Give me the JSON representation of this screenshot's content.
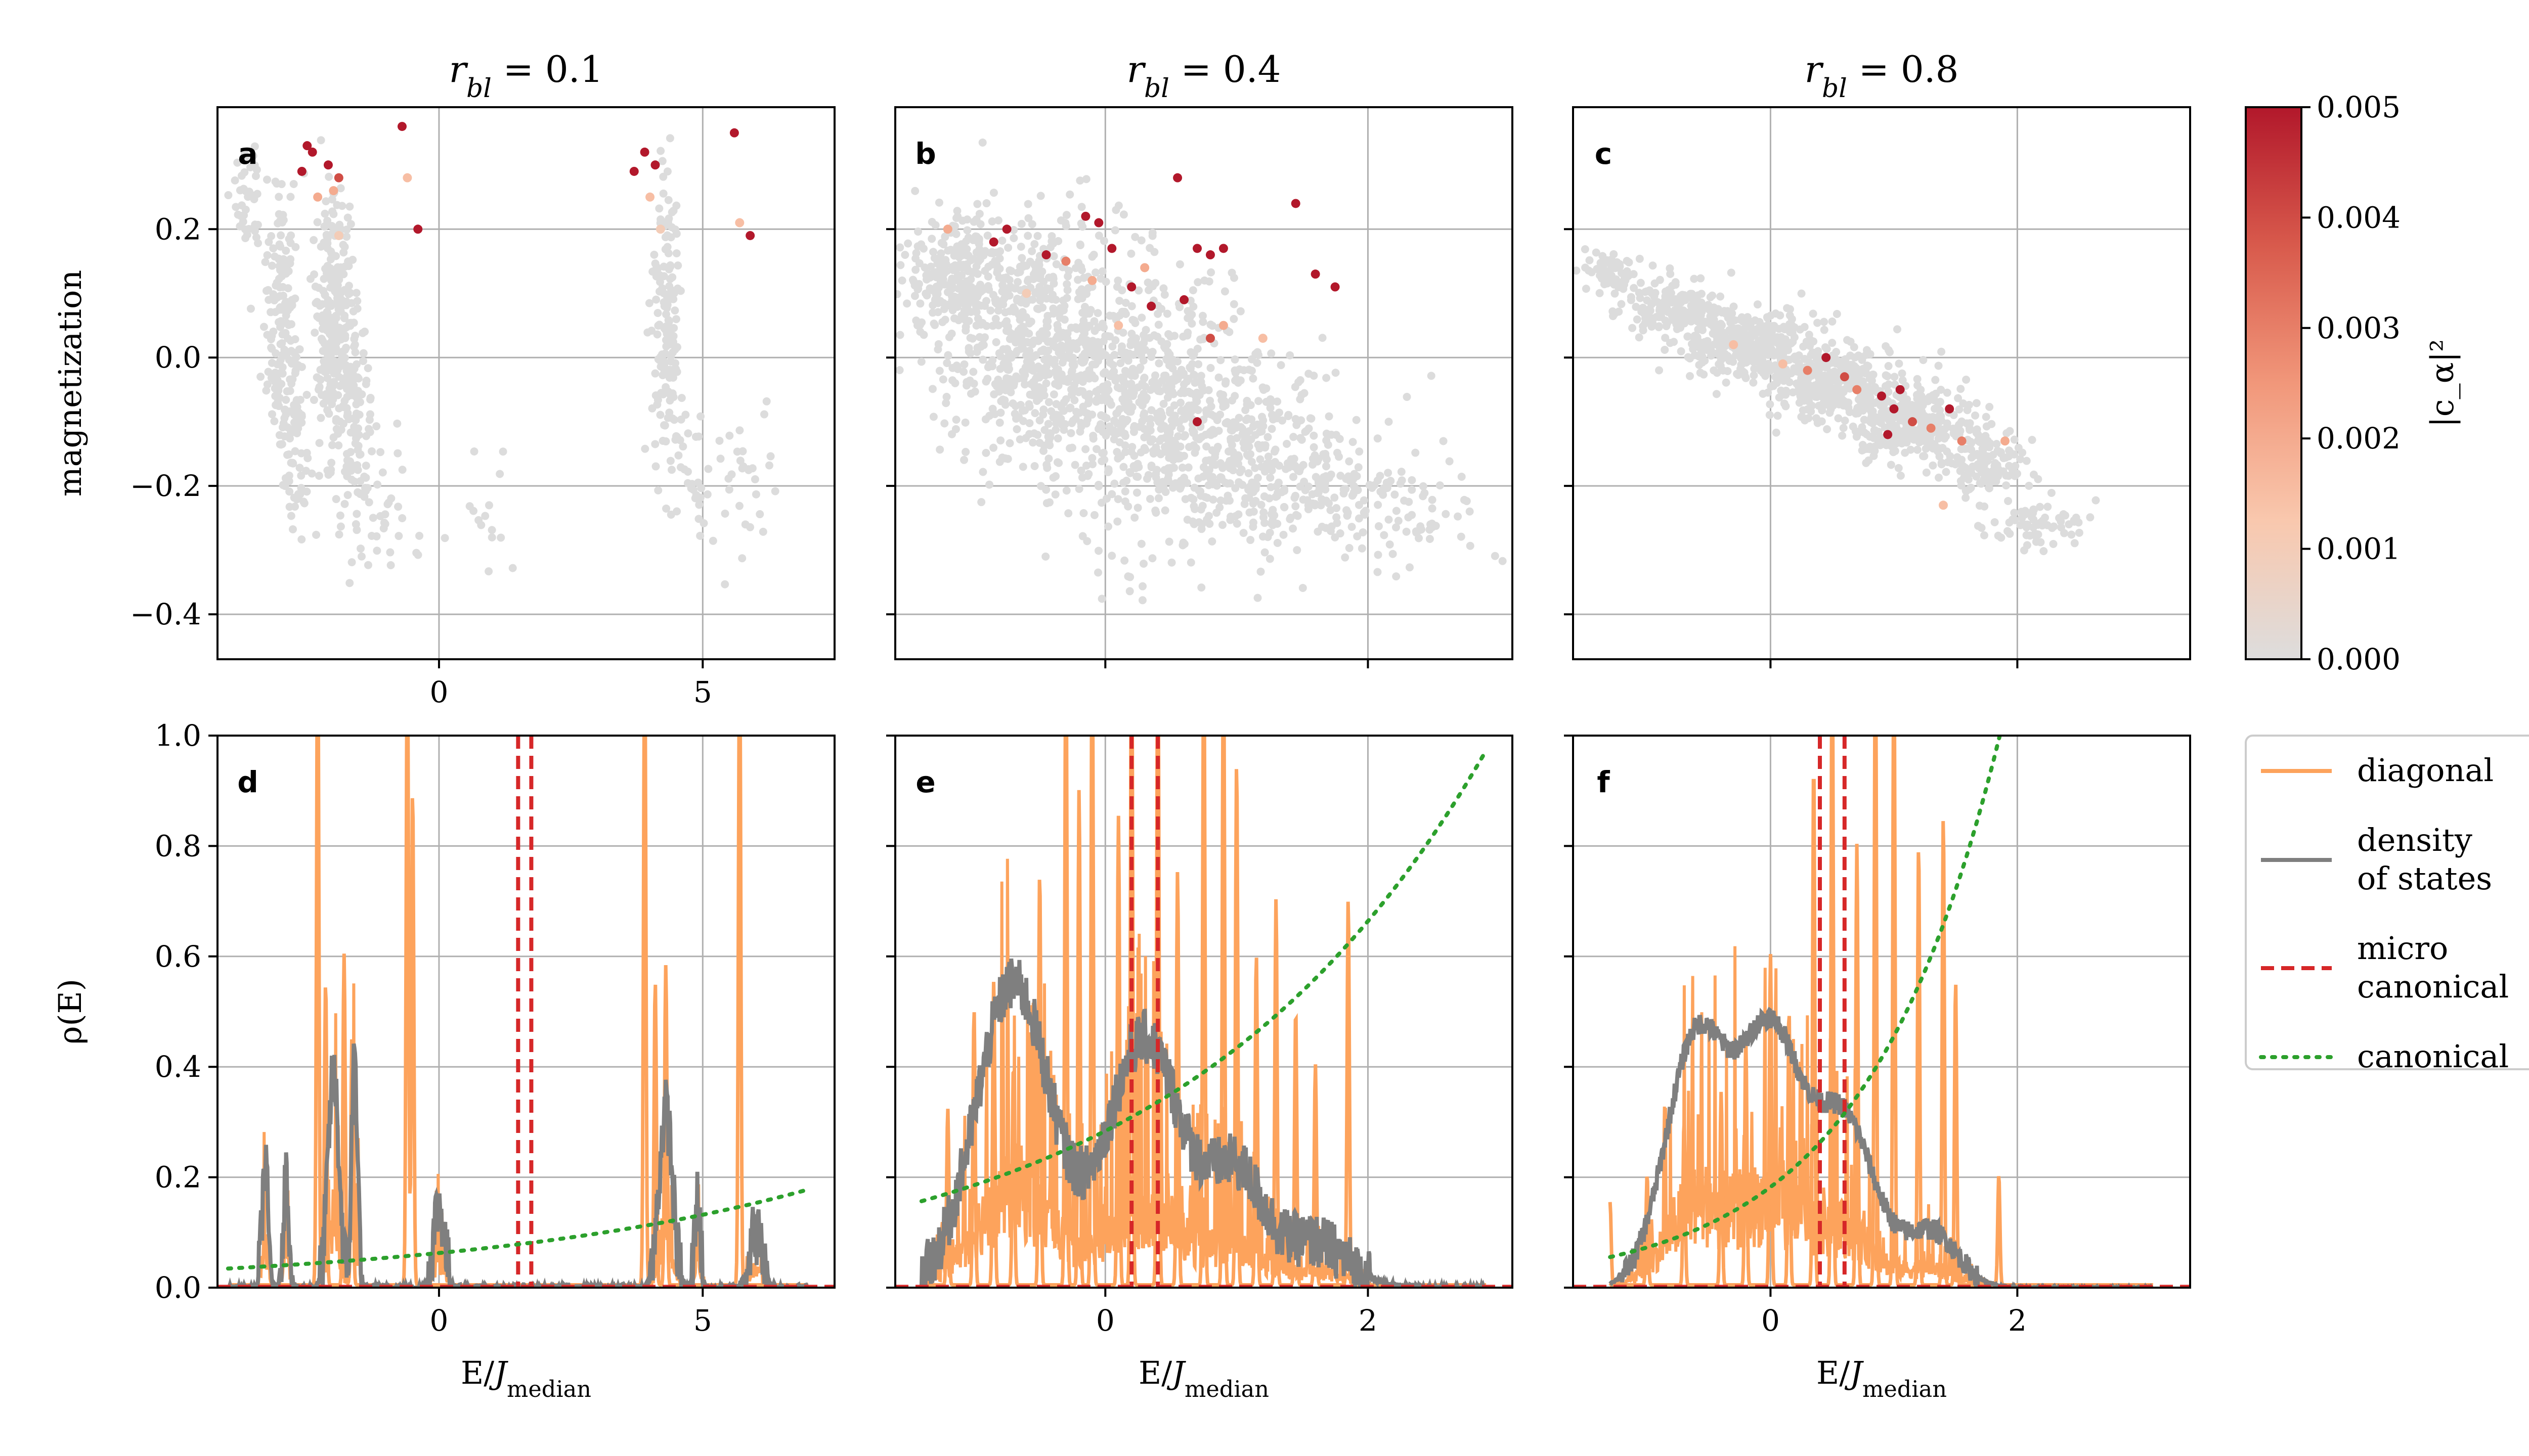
{
  "figure": {
    "colorbar": {
      "label": "|c_α|²",
      "ticks": [
        "0.000",
        "0.001",
        "0.002",
        "0.003",
        "0.004",
        "0.005"
      ],
      "range": [
        0,
        0.005
      ],
      "colors": [
        "#dddddd",
        "#f9c8ae",
        "#f1977a",
        "#d85a4c",
        "#b2182b"
      ]
    },
    "legend": {
      "entries": [
        {
          "key": "diagonal",
          "lines": [
            "diagonal"
          ],
          "color": "#fda35c",
          "style": "solid"
        },
        {
          "key": "dos",
          "lines": [
            "density",
            "of states"
          ],
          "color": "#7f7f7f",
          "style": "solid"
        },
        {
          "key": "micro",
          "lines": [
            "micro",
            "canonical"
          ],
          "color": "#d62728",
          "style": "dashed"
        },
        {
          "key": "canonical",
          "lines": [
            "canonical"
          ],
          "color": "#2ca02c",
          "style": "dotted"
        }
      ]
    }
  },
  "chart_data": [
    {
      "type": "scatter",
      "panel": "a",
      "column": 0,
      "row": 0,
      "title": "r_bl = 0.1",
      "ylabel": "magnetization",
      "xlabel": "",
      "xlim": [
        -4.2,
        7.5
      ],
      "ylim": [
        -0.47,
        0.39
      ],
      "xticks": [
        0,
        5
      ],
      "xtick_labels": [
        "0",
        "5"
      ],
      "yticks": [
        -0.4,
        -0.2,
        0.0,
        0.2
      ],
      "ytick_labels": [
        "−0.4",
        "−0.2",
        "0.0",
        "0.2"
      ],
      "grid": true,
      "clusters": [
        {
          "x": -3.6,
          "y": 0.24,
          "xs": 0.15,
          "ys": 0.05,
          "n": 40
        },
        {
          "x": -3.0,
          "y": 0.06,
          "xs": 0.15,
          "ys": 0.1,
          "n": 160
        },
        {
          "x": -2.7,
          "y": -0.12,
          "xs": 0.15,
          "ys": 0.08,
          "n": 70
        },
        {
          "x": -2.0,
          "y": 0.05,
          "xs": 0.18,
          "ys": 0.1,
          "n": 260
        },
        {
          "x": -1.6,
          "y": -0.12,
          "xs": 0.18,
          "ys": 0.08,
          "n": 120
        },
        {
          "x": -0.9,
          "y": -0.25,
          "xs": 0.25,
          "ys": 0.05,
          "n": 25
        },
        {
          "x": 0.7,
          "y": -0.28,
          "xs": 0.3,
          "ys": 0.05,
          "n": 15
        },
        {
          "x": 4.3,
          "y": 0.05,
          "xs": 0.15,
          "ys": 0.12,
          "n": 150
        },
        {
          "x": 4.8,
          "y": -0.2,
          "xs": 0.2,
          "ys": 0.06,
          "n": 30
        },
        {
          "x": 5.8,
          "y": -0.2,
          "xs": 0.3,
          "ys": 0.06,
          "n": 30
        }
      ],
      "highlights": [
        {
          "x": -2.5,
          "y": 0.33,
          "c": 0.005
        },
        {
          "x": -2.4,
          "y": 0.32,
          "c": 0.005
        },
        {
          "x": -2.6,
          "y": 0.29,
          "c": 0.005
        },
        {
          "x": -2.1,
          "y": 0.3,
          "c": 0.005
        },
        {
          "x": -1.9,
          "y": 0.28,
          "c": 0.004
        },
        {
          "x": -0.7,
          "y": 0.36,
          "c": 0.005
        },
        {
          "x": -0.4,
          "y": 0.2,
          "c": 0.005
        },
        {
          "x": 3.7,
          "y": 0.29,
          "c": 0.005
        },
        {
          "x": 3.9,
          "y": 0.32,
          "c": 0.005
        },
        {
          "x": 4.1,
          "y": 0.3,
          "c": 0.005
        },
        {
          "x": 5.6,
          "y": 0.35,
          "c": 0.005
        },
        {
          "x": 5.9,
          "y": 0.19,
          "c": 0.005
        },
        {
          "x": -2.3,
          "y": 0.25,
          "c": 0.002
        },
        {
          "x": -2.0,
          "y": 0.26,
          "c": 0.002
        },
        {
          "x": -1.9,
          "y": 0.19,
          "c": 0.001
        },
        {
          "x": -0.6,
          "y": 0.28,
          "c": 0.0015
        },
        {
          "x": 4.0,
          "y": 0.25,
          "c": 0.0015
        },
        {
          "x": 4.2,
          "y": 0.2,
          "c": 0.001
        },
        {
          "x": 5.7,
          "y": 0.21,
          "c": 0.0015
        }
      ]
    },
    {
      "type": "scatter",
      "panel": "b",
      "column": 1,
      "row": 0,
      "title": "r_bl = 0.4",
      "ylabel": "",
      "xlabel": "",
      "xlim": [
        -1.6,
        3.1
      ],
      "ylim": [
        -0.47,
        0.39
      ],
      "xticks": [
        0,
        2
      ],
      "xtick_labels": [],
      "yticks": [
        -0.4,
        -0.2,
        0.0,
        0.2
      ],
      "ytick_labels": [],
      "grid": true,
      "clusters": [
        {
          "x": -1.1,
          "y": 0.12,
          "xs": 0.2,
          "ys": 0.05,
          "n": 260
        },
        {
          "x": -0.5,
          "y": 0.02,
          "xs": 0.35,
          "ys": 0.1,
          "n": 650
        },
        {
          "x": 0.4,
          "y": -0.08,
          "xs": 0.4,
          "ys": 0.1,
          "n": 650
        },
        {
          "x": 1.2,
          "y": -0.16,
          "xs": 0.35,
          "ys": 0.07,
          "n": 260
        },
        {
          "x": 1.9,
          "y": -0.22,
          "xs": 0.35,
          "ys": 0.05,
          "n": 120
        },
        {
          "x": 2.5,
          "y": -0.27,
          "xs": 0.25,
          "ys": 0.03,
          "n": 25
        }
      ],
      "highlights": [
        {
          "x": -0.85,
          "y": 0.18,
          "c": 0.005
        },
        {
          "x": -0.75,
          "y": 0.2,
          "c": 0.005
        },
        {
          "x": -0.45,
          "y": 0.16,
          "c": 0.005
        },
        {
          "x": -0.15,
          "y": 0.22,
          "c": 0.005
        },
        {
          "x": -0.05,
          "y": 0.21,
          "c": 0.005
        },
        {
          "x": 0.05,
          "y": 0.17,
          "c": 0.005
        },
        {
          "x": 0.2,
          "y": 0.11,
          "c": 0.005
        },
        {
          "x": 0.35,
          "y": 0.08,
          "c": 0.005
        },
        {
          "x": 0.55,
          "y": 0.28,
          "c": 0.005
        },
        {
          "x": 0.7,
          "y": 0.17,
          "c": 0.005
        },
        {
          "x": 0.8,
          "y": 0.16,
          "c": 0.005
        },
        {
          "x": 0.9,
          "y": 0.17,
          "c": 0.005
        },
        {
          "x": 1.45,
          "y": 0.24,
          "c": 0.005
        },
        {
          "x": 1.6,
          "y": 0.13,
          "c": 0.005
        },
        {
          "x": 1.75,
          "y": 0.11,
          "c": 0.005
        },
        {
          "x": 0.6,
          "y": 0.09,
          "c": 0.005
        },
        {
          "x": 0.7,
          "y": -0.1,
          "c": 0.005
        },
        {
          "x": 0.8,
          "y": 0.03,
          "c": 0.004
        },
        {
          "x": -1.2,
          "y": 0.2,
          "c": 0.002
        },
        {
          "x": -0.3,
          "y": 0.15,
          "c": 0.003
        },
        {
          "x": -0.1,
          "y": 0.12,
          "c": 0.002
        },
        {
          "x": 0.3,
          "y": 0.14,
          "c": 0.002
        },
        {
          "x": 0.9,
          "y": 0.05,
          "c": 0.002
        },
        {
          "x": 1.2,
          "y": 0.03,
          "c": 0.0015
        },
        {
          "x": 0.1,
          "y": 0.05,
          "c": 0.0015
        },
        {
          "x": -0.6,
          "y": 0.1,
          "c": 0.001
        }
      ]
    },
    {
      "type": "scatter",
      "panel": "c",
      "column": 2,
      "row": 0,
      "title": "r_bl = 0.8",
      "ylabel": "",
      "xlabel": "",
      "xlim": [
        -1.6,
        3.4
      ],
      "ylim": [
        -0.47,
        0.39
      ],
      "xticks": [
        0,
        2
      ],
      "xtick_labels": [],
      "yticks": [
        -0.4,
        -0.2,
        0.0,
        0.2
      ],
      "ytick_labels": [],
      "grid": true,
      "clusters": [
        {
          "x": -1.3,
          "y": 0.13,
          "xs": 0.1,
          "ys": 0.015,
          "n": 60
        },
        {
          "x": -0.8,
          "y": 0.08,
          "xs": 0.2,
          "ys": 0.02,
          "n": 180
        },
        {
          "x": -0.2,
          "y": 0.02,
          "xs": 0.25,
          "ys": 0.025,
          "n": 320
        },
        {
          "x": 0.5,
          "y": -0.04,
          "xs": 0.25,
          "ys": 0.03,
          "n": 360
        },
        {
          "x": 1.1,
          "y": -0.1,
          "xs": 0.25,
          "ys": 0.03,
          "n": 300
        },
        {
          "x": 1.7,
          "y": -0.17,
          "xs": 0.2,
          "ys": 0.03,
          "n": 140
        },
        {
          "x": 2.2,
          "y": -0.26,
          "xs": 0.25,
          "ys": 0.02,
          "n": 70
        }
      ],
      "highlights": [
        {
          "x": 0.45,
          "y": 0.0,
          "c": 0.005
        },
        {
          "x": 0.9,
          "y": -0.06,
          "c": 0.005
        },
        {
          "x": 1.0,
          "y": -0.08,
          "c": 0.005
        },
        {
          "x": 1.05,
          "y": -0.05,
          "c": 0.005
        },
        {
          "x": 0.95,
          "y": -0.12,
          "c": 0.005
        },
        {
          "x": 1.45,
          "y": -0.08,
          "c": 0.005
        },
        {
          "x": 1.15,
          "y": -0.1,
          "c": 0.004
        },
        {
          "x": 0.6,
          "y": -0.03,
          "c": 0.004
        },
        {
          "x": 0.3,
          "y": -0.02,
          "c": 0.003
        },
        {
          "x": 0.7,
          "y": -0.05,
          "c": 0.003
        },
        {
          "x": 1.3,
          "y": -0.11,
          "c": 0.003
        },
        {
          "x": 1.55,
          "y": -0.13,
          "c": 0.003
        },
        {
          "x": 1.9,
          "y": -0.13,
          "c": 0.002
        },
        {
          "x": -0.3,
          "y": 0.02,
          "c": 0.0015
        },
        {
          "x": 0.1,
          "y": -0.01,
          "c": 0.0015
        },
        {
          "x": 1.4,
          "y": -0.23,
          "c": 0.0015
        }
      ]
    },
    {
      "type": "line",
      "panel": "d",
      "column": 0,
      "row": 1,
      "title": "",
      "ylabel": "ρ(E)",
      "xlabel": "E/J_median",
      "xlim": [
        -4.2,
        7.5
      ],
      "ylim": [
        0,
        1.0
      ],
      "xticks": [
        0,
        5
      ],
      "xtick_labels": [
        "0",
        "5"
      ],
      "yticks": [
        0.0,
        0.2,
        0.4,
        0.6,
        0.8,
        1.0
      ],
      "ytick_labels": [
        "0.0",
        "0.2",
        "0.4",
        "0.6",
        "0.8",
        "1.0"
      ],
      "grid": true,
      "x_range": [
        -4.0,
        7.0
      ],
      "dos_bumps": [
        [
          -3.3,
          0.08,
          0.22
        ],
        [
          -2.9,
          0.08,
          0.2
        ],
        [
          -2.0,
          0.15,
          0.38
        ],
        [
          -1.6,
          0.08,
          0.42
        ],
        [
          0.0,
          0.15,
          0.15
        ],
        [
          4.3,
          0.18,
          0.32
        ],
        [
          4.9,
          0.08,
          0.16
        ],
        [
          6.0,
          0.18,
          0.1
        ]
      ],
      "dos_noise": 0.12,
      "diagonal_spikes": [
        [
          -2.3,
          1.2
        ],
        [
          -2.15,
          0.55
        ],
        [
          -1.8,
          0.6
        ],
        [
          -1.65,
          0.45
        ],
        [
          -0.6,
          1.2
        ],
        [
          -0.5,
          0.9
        ],
        [
          3.9,
          1.2
        ],
        [
          4.1,
          0.55
        ],
        [
          4.3,
          0.58
        ],
        [
          5.7,
          1.2
        ]
      ],
      "micro_lines": [
        1.5,
        1.75
      ],
      "canonical": {
        "a": 0.0346,
        "b": 0.1488
      },
      "series_keys": [
        "diagonal",
        "dos",
        "micro",
        "canonical"
      ]
    },
    {
      "type": "line",
      "panel": "e",
      "column": 1,
      "row": 1,
      "title": "",
      "ylabel": "",
      "xlabel": "E/J_median",
      "xlim": [
        -1.6,
        3.1
      ],
      "ylim": [
        0,
        1.0
      ],
      "xticks": [
        0,
        2
      ],
      "xtick_labels": [
        "0",
        "2"
      ],
      "yticks": [
        0.0,
        0.2,
        0.4,
        0.6,
        0.8,
        1.0
      ],
      "ytick_labels": [],
      "grid": true,
      "x_range": [
        -1.4,
        2.9
      ],
      "dos_bumps": [
        [
          -0.7,
          0.4,
          0.55
        ],
        [
          0.3,
          0.4,
          0.45
        ],
        [
          1.0,
          0.3,
          0.2
        ],
        [
          1.6,
          0.35,
          0.08
        ]
      ],
      "dos_noise": 0.1,
      "diagonal_spikes": [
        [
          -1.2,
          0.32
        ],
        [
          -1.0,
          0.5
        ],
        [
          -0.85,
          0.55
        ],
        [
          -0.7,
          0.4
        ],
        [
          -0.5,
          0.75
        ],
        [
          -0.3,
          1.2
        ],
        [
          -0.2,
          0.9
        ],
        [
          -0.1,
          1.2
        ],
        [
          0.1,
          0.85
        ],
        [
          0.2,
          1.2
        ],
        [
          0.4,
          1.2
        ],
        [
          0.55,
          0.75
        ],
        [
          0.75,
          1.2
        ],
        [
          0.9,
          1.2
        ],
        [
          1.0,
          0.95
        ],
        [
          1.15,
          0.6
        ],
        [
          1.3,
          0.7
        ],
        [
          1.45,
          0.5
        ],
        [
          1.6,
          0.4
        ],
        [
          1.85,
          0.7
        ]
      ],
      "micro_lines": [
        0.2,
        0.4
      ],
      "canonical": {
        "a": 0.1566,
        "b": 0.4248
      },
      "series_keys": [
        "diagonal",
        "dos",
        "micro",
        "canonical"
      ]
    },
    {
      "type": "line",
      "panel": "f",
      "column": 2,
      "row": 1,
      "title": "",
      "ylabel": "",
      "xlabel": "E/J_median",
      "xlim": [
        -1.6,
        3.4
      ],
      "ylim": [
        0,
        1.0
      ],
      "xticks": [
        0,
        2
      ],
      "xtick_labels": [
        "0",
        "2"
      ],
      "yticks": [
        0.0,
        0.2,
        0.4,
        0.6,
        0.8,
        1.0
      ],
      "ytick_labels": [],
      "grid": true,
      "x_range": [
        -1.3,
        3.1
      ],
      "dos_bumps": [
        [
          -0.6,
          0.35,
          0.45
        ],
        [
          0.0,
          0.35,
          0.45
        ],
        [
          0.6,
          0.35,
          0.3
        ],
        [
          1.3,
          0.3,
          0.1
        ]
      ],
      "dos_noise": 0.04,
      "diagonal_spikes": [
        [
          -1.3,
          0.15
        ],
        [
          -1.0,
          0.2
        ],
        [
          -0.7,
          0.3
        ],
        [
          -0.4,
          0.35
        ],
        [
          -0.2,
          0.45
        ],
        [
          0.0,
          0.6
        ],
        [
          0.15,
          0.5
        ],
        [
          0.35,
          0.95
        ],
        [
          0.5,
          1.2
        ],
        [
          0.7,
          0.8
        ],
        [
          0.85,
          1.2
        ],
        [
          1.0,
          1.2
        ],
        [
          1.2,
          0.8
        ],
        [
          1.4,
          0.85
        ],
        [
          1.5,
          0.55
        ],
        [
          1.85,
          0.2
        ]
      ],
      "micro_lines": [
        0.4,
        0.6
      ],
      "canonical": {
        "a": 0.0554,
        "b": 0.9163
      },
      "series_keys": [
        "diagonal",
        "dos",
        "micro",
        "canonical"
      ]
    }
  ]
}
